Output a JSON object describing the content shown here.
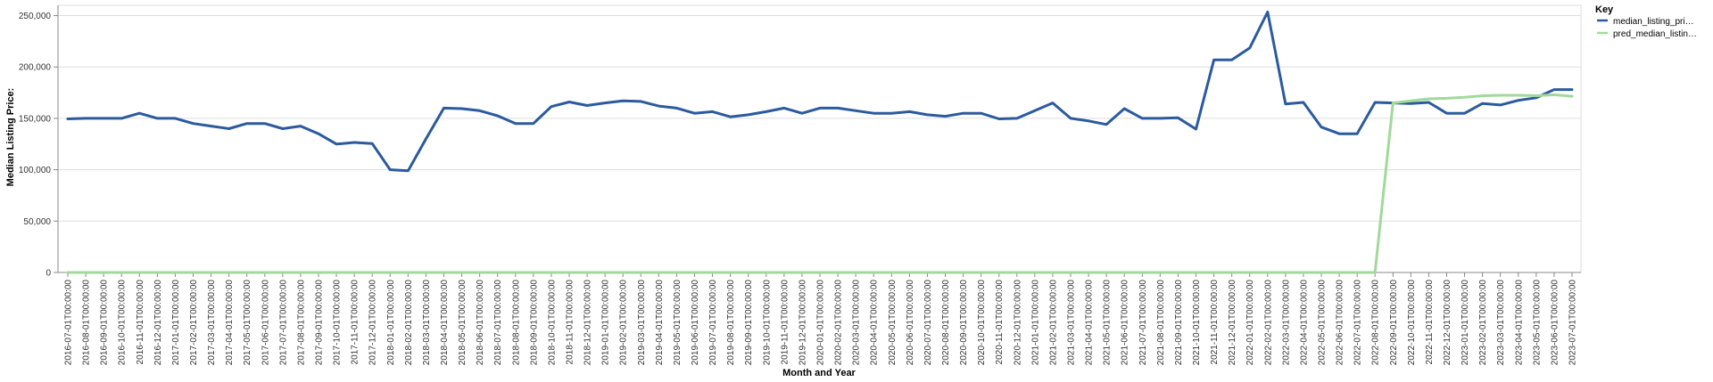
{
  "chart_data": {
    "type": "line",
    "title": "",
    "xlabel": "Month and Year",
    "ylabel": "Median Listing Price:",
    "ylim": [
      0,
      260000
    ],
    "yticks": [
      0,
      50000,
      100000,
      150000,
      200000,
      250000
    ],
    "ytick_labels": [
      "0",
      "50,000",
      "100,000",
      "150,000",
      "200,000",
      "250,000"
    ],
    "grid": true,
    "legend_title": "Key",
    "legend_position": "right",
    "x": [
      "2016-07-01T00:00:00",
      "2016-08-01T00:00:00",
      "2016-09-01T00:00:00",
      "2016-10-01T00:00:00",
      "2016-11-01T00:00:00",
      "2016-12-01T00:00:00",
      "2017-01-01T00:00:00",
      "2017-02-01T00:00:00",
      "2017-03-01T00:00:00",
      "2017-04-01T00:00:00",
      "2017-05-01T00:00:00",
      "2017-06-01T00:00:00",
      "2017-07-01T00:00:00",
      "2017-08-01T00:00:00",
      "2017-09-01T00:00:00",
      "2017-10-01T00:00:00",
      "2017-11-01T00:00:00",
      "2017-12-01T00:00:00",
      "2018-01-01T00:00:00",
      "2018-02-01T00:00:00",
      "2018-03-01T00:00:00",
      "2018-04-01T00:00:00",
      "2018-05-01T00:00:00",
      "2018-06-01T00:00:00",
      "2018-07-01T00:00:00",
      "2018-08-01T00:00:00",
      "2018-09-01T00:00:00",
      "2018-10-01T00:00:00",
      "2018-11-01T00:00:00",
      "2018-12-01T00:00:00",
      "2019-01-01T00:00:00",
      "2019-02-01T00:00:00",
      "2019-03-01T00:00:00",
      "2019-04-01T00:00:00",
      "2019-05-01T00:00:00",
      "2019-06-01T00:00:00",
      "2019-07-01T00:00:00",
      "2019-08-01T00:00:00",
      "2019-09-01T00:00:00",
      "2019-10-01T00:00:00",
      "2019-11-01T00:00:00",
      "2019-12-01T00:00:00",
      "2020-01-01T00:00:00",
      "2020-02-01T00:00:00",
      "2020-03-01T00:00:00",
      "2020-04-01T00:00:00",
      "2020-05-01T00:00:00",
      "2020-06-01T00:00:00",
      "2020-07-01T00:00:00",
      "2020-08-01T00:00:00",
      "2020-09-01T00:00:00",
      "2020-10-01T00:00:00",
      "2020-11-01T00:00:00",
      "2020-12-01T00:00:00",
      "2021-01-01T00:00:00",
      "2021-02-01T00:00:00",
      "2021-03-01T00:00:00",
      "2021-04-01T00:00:00",
      "2021-05-01T00:00:00",
      "2021-06-01T00:00:00",
      "2021-07-01T00:00:00",
      "2021-08-01T00:00:00",
      "2021-09-01T00:00:00",
      "2021-10-01T00:00:00",
      "2021-11-01T00:00:00",
      "2021-12-01T00:00:00",
      "2022-01-01T00:00:00",
      "2022-02-01T00:00:00",
      "2022-03-01T00:00:00",
      "2022-04-01T00:00:00",
      "2022-05-01T00:00:00",
      "2022-06-01T00:00:00",
      "2022-07-01T00:00:00",
      "2022-08-01T00:00:00",
      "2022-09-01T00:00:00",
      "2022-10-01T00:00:00",
      "2022-11-01T00:00:00",
      "2022-12-01T00:00:00",
      "2023-01-01T00:00:00",
      "2023-02-01T00:00:00",
      "2023-03-01T00:00:00",
      "2023-04-01T00:00:00",
      "2023-05-01T00:00:00",
      "2023-06-01T00:00:00",
      "2023-07-01T00:00:00"
    ],
    "series": [
      {
        "name": "median_listing_pri…",
        "color": "#2b5a9e",
        "values": [
          149500,
          150000,
          150000,
          150000,
          155000,
          150000,
          150000,
          145000,
          142500,
          140000,
          145000,
          145000,
          140000,
          142500,
          135000,
          125000,
          126500,
          125500,
          100000,
          99000,
          130000,
          160000,
          159500,
          157500,
          152500,
          145000,
          145000,
          161500,
          166000,
          162500,
          165000,
          167000,
          166500,
          162000,
          160000,
          155000,
          156500,
          151500,
          153500,
          156500,
          160000,
          155000,
          160000,
          160000,
          157500,
          155000,
          155000,
          156500,
          153500,
          152000,
          155000,
          155000,
          149500,
          150000,
          157500,
          165000,
          150000,
          147500,
          144000,
          159500,
          150000,
          150000,
          150500,
          139500,
          207000,
          207000,
          218500,
          253500,
          164000,
          165500,
          141500,
          135000,
          135000,
          165500,
          165000,
          164500,
          165500,
          155000,
          155000,
          164500,
          163000,
          167500,
          170000,
          178000,
          178000
        ]
      },
      {
        "name": "pred_median_listin…",
        "color": "#a1d99b",
        "values": [
          0,
          0,
          0,
          0,
          0,
          0,
          0,
          0,
          0,
          0,
          0,
          0,
          0,
          0,
          0,
          0,
          0,
          0,
          0,
          0,
          0,
          0,
          0,
          0,
          0,
          0,
          0,
          0,
          0,
          0,
          0,
          0,
          0,
          0,
          0,
          0,
          0,
          0,
          0,
          0,
          0,
          0,
          0,
          0,
          0,
          0,
          0,
          0,
          0,
          0,
          0,
          0,
          0,
          0,
          0,
          0,
          0,
          0,
          0,
          0,
          0,
          0,
          0,
          0,
          0,
          0,
          0,
          0,
          0,
          0,
          0,
          0,
          0,
          0,
          165000,
          167000,
          169000,
          169500,
          170500,
          172000,
          172500,
          172500,
          172000,
          173000,
          171500
        ]
      }
    ]
  }
}
